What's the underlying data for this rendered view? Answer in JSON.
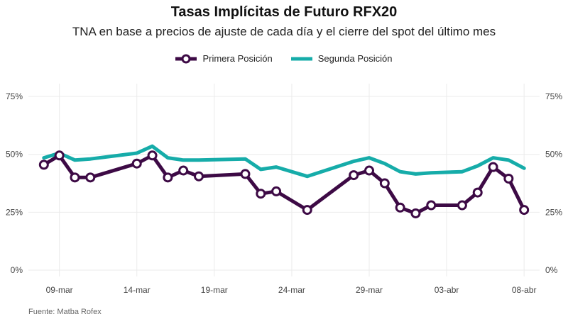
{
  "chart_data": {
    "type": "line",
    "title": "Tasas Implícitas de Futuro RFX20",
    "subtitle": "TNA en base a precios de ajuste de cada día y el cierre del spot del último mes",
    "caption": "Fuente: Matba Rofex",
    "x_axis": {
      "start": "2021-03-08",
      "ticks": [
        "09-mar",
        "14-mar",
        "19-mar",
        "24-mar",
        "29-mar",
        "03-abr",
        "08-abr"
      ],
      "tick_dates": [
        "2021-03-09",
        "2021-03-14",
        "2021-03-19",
        "2021-03-24",
        "2021-03-29",
        "2021-04-03",
        "2021-04-08"
      ],
      "range": [
        "2021-03-07",
        "2021-04-09"
      ]
    },
    "y_axis": {
      "ticks": [
        "0%",
        "25%",
        "50%",
        "75%"
      ],
      "tick_values": [
        0,
        25,
        50,
        75
      ],
      "ylim": [
        0,
        75
      ]
    },
    "grid": true,
    "legend_position": "top",
    "series": [
      {
        "name": "Primera Posición",
        "color": "#3d0a45",
        "marker": "circle",
        "points": [
          [
            "2021-03-08",
            45.5
          ],
          [
            "2021-03-09",
            49.5
          ],
          [
            "2021-03-10",
            40.0
          ],
          [
            "2021-03-11",
            40.0
          ],
          [
            "2021-03-14",
            46.0
          ],
          [
            "2021-03-15",
            49.5
          ],
          [
            "2021-03-16",
            40.0
          ],
          [
            "2021-03-17",
            43.0
          ],
          [
            "2021-03-18",
            40.5
          ],
          [
            "2021-03-21",
            41.5
          ],
          [
            "2021-03-22",
            33.0
          ],
          [
            "2021-03-23",
            34.0
          ],
          [
            "2021-03-25",
            26.0
          ],
          [
            "2021-03-28",
            41.0
          ],
          [
            "2021-03-29",
            43.0
          ],
          [
            "2021-03-30",
            37.5
          ],
          [
            "2021-03-31",
            27.0
          ],
          [
            "2021-04-01",
            24.5
          ],
          [
            "2021-04-02",
            28.0
          ],
          [
            "2021-04-04",
            28.0
          ],
          [
            "2021-04-05",
            33.5
          ],
          [
            "2021-04-06",
            44.5
          ],
          [
            "2021-04-07",
            39.5
          ],
          [
            "2021-04-08",
            26.0
          ]
        ]
      },
      {
        "name": "Segunda Posición",
        "color": "#16aca9",
        "marker": "none",
        "points": [
          [
            "2021-03-08",
            48.5
          ],
          [
            "2021-03-09",
            50.5
          ],
          [
            "2021-03-10",
            47.5
          ],
          [
            "2021-03-11",
            48.0
          ],
          [
            "2021-03-14",
            50.5
          ],
          [
            "2021-03-15",
            53.5
          ],
          [
            "2021-03-16",
            48.5
          ],
          [
            "2021-03-17",
            47.5
          ],
          [
            "2021-03-18",
            47.5
          ],
          [
            "2021-03-21",
            48.0
          ],
          [
            "2021-03-22",
            43.5
          ],
          [
            "2021-03-23",
            44.5
          ],
          [
            "2021-03-25",
            40.5
          ],
          [
            "2021-03-28",
            47.0
          ],
          [
            "2021-03-29",
            48.5
          ],
          [
            "2021-03-30",
            46.0
          ],
          [
            "2021-03-31",
            42.5
          ],
          [
            "2021-04-01",
            41.5
          ],
          [
            "2021-04-02",
            42.0
          ],
          [
            "2021-04-04",
            42.5
          ],
          [
            "2021-04-05",
            45.0
          ],
          [
            "2021-04-06",
            48.5
          ],
          [
            "2021-04-07",
            47.5
          ],
          [
            "2021-04-08",
            44.0
          ]
        ]
      }
    ]
  }
}
